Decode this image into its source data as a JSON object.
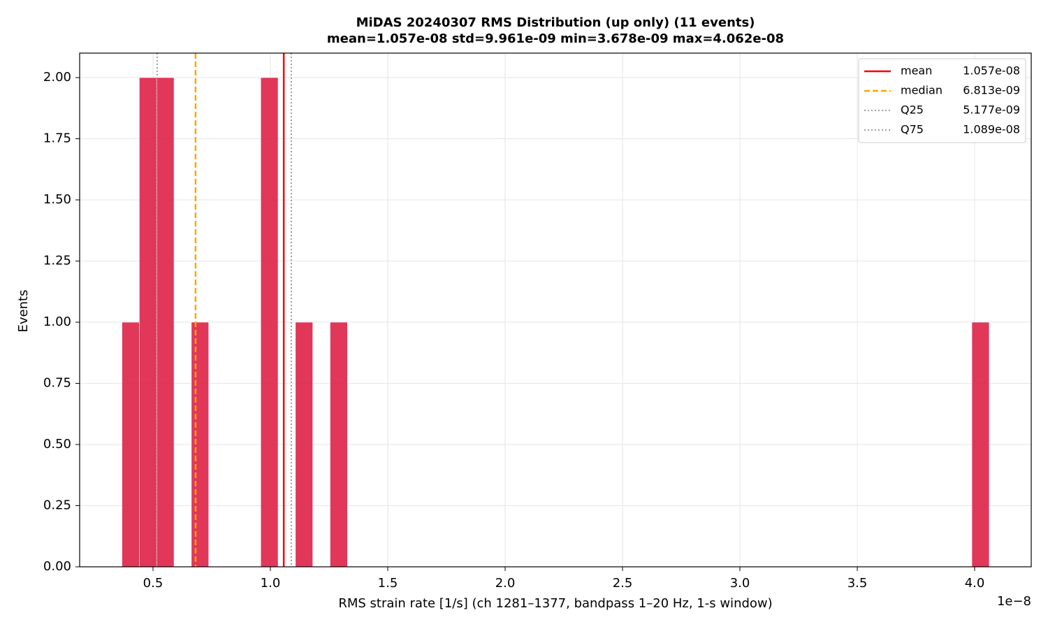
{
  "chart_data": {
    "type": "histogram",
    "title": "MiDAS 20240307  RMS Distribution  (up only)  (11 events)",
    "subtitle": "mean=1.057e-08  std=9.961e-09  min=3.678e-09  max=4.062e-08",
    "x_label": "RMS strain rate [1/s]  (ch 1281–1377, bandpass 1–20 Hz, 1-s window)",
    "x_offset_label": "1e−8",
    "y_label": "Events",
    "bins": [
      0.3678,
      0.4417,
      0.5156,
      0.5895,
      0.6633,
      0.7372,
      0.8111,
      0.885,
      0.9589,
      1.0328,
      1.1066,
      1.1805,
      1.2544,
      1.3283,
      1.4022,
      1.4761,
      1.5499,
      1.6238,
      1.6977,
      1.7716,
      1.8455,
      1.9194,
      1.9932,
      2.0671,
      2.141,
      2.2149,
      2.2888,
      2.3627,
      2.4366,
      2.5104,
      2.5843,
      2.6582,
      2.7321,
      2.806,
      2.8799,
      2.9537,
      3.0276,
      3.1015,
      3.1754,
      3.2493,
      3.3232,
      3.397,
      3.4709,
      3.5448,
      3.6187,
      3.6926,
      3.7665,
      3.8403,
      3.9142,
      3.9881,
      4.062
    ],
    "values": [
      1,
      2,
      2,
      0,
      1,
      0,
      0,
      0,
      2,
      0,
      1,
      0,
      1,
      0,
      0,
      0,
      0,
      0,
      0,
      0,
      0,
      0,
      0,
      0,
      0,
      0,
      0,
      0,
      0,
      0,
      0,
      0,
      0,
      0,
      0,
      0,
      0,
      0,
      0,
      0,
      0,
      0,
      0,
      0,
      0,
      0,
      0,
      0,
      0,
      1
    ],
    "color": "#dc143c",
    "lines": [
      {
        "name": "mean",
        "value": 1.057,
        "label": "1.057e-08",
        "color": "#ff0000",
        "style": "solid"
      },
      {
        "name": "median",
        "value": 0.6813,
        "label": "6.813e-09",
        "color": "#ffa500",
        "style": "dashed"
      },
      {
        "name": "Q25",
        "value": 0.5177,
        "label": "5.177e-09",
        "color": "#808080",
        "style": "dotted"
      },
      {
        "name": "Q75",
        "value": 1.089,
        "label": "1.089e-08",
        "color": "#808080",
        "style": "dotted"
      }
    ],
    "xlim": [
      0.1875,
      4.241
    ],
    "xticks": [
      0.5,
      {
        "value": 1,
        "label": "1.0"
      },
      1.5,
      {
        "value": 2,
        "label": "2.0"
      },
      2.5,
      {
        "value": 3,
        "label": "3.0"
      },
      3.5,
      {
        "value": 4,
        "label": "4.0"
      }
    ],
    "ylim": [
      0,
      2.1
    ],
    "yticks": [
      {
        "value": 0,
        "label": "0.00"
      },
      0.25,
      {
        "value": 0.5,
        "label": "0.50"
      },
      0.75,
      {
        "value": 1,
        "label": "1.00"
      },
      1.25,
      {
        "value": 1.5,
        "label": "1.50"
      },
      1.75,
      {
        "value": 2,
        "label": "2.00"
      }
    ],
    "grid": true,
    "legend": "upper right"
  }
}
